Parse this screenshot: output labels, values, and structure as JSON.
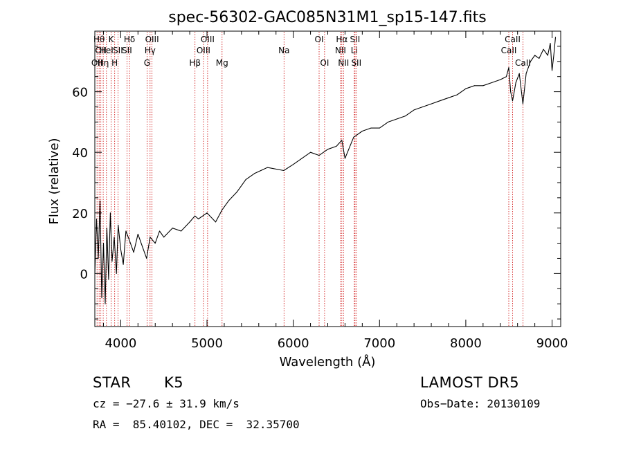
{
  "chart_data": {
    "type": "line",
    "title": "spec-56302-GAC085N31M1_sp15-147.fits",
    "xlabel": "Wavelength (Å)",
    "ylabel": "Flux (relative)",
    "xlim": [
      3700,
      9100
    ],
    "ylim": [
      -17.5,
      80
    ],
    "x_ticks": [
      4000,
      5000,
      6000,
      7000,
      8000,
      9000
    ],
    "y_ticks": [
      0,
      20,
      40,
      60
    ],
    "grid": false,
    "series": [
      {
        "x": [
          3700,
          3720,
          3740,
          3760,
          3780,
          3800,
          3820,
          3840,
          3860,
          3880,
          3900,
          3925,
          3950,
          3970,
          4000,
          4030,
          4060,
          4100,
          4150,
          4200,
          4250,
          4300,
          4340,
          4400,
          4450,
          4500,
          4600,
          4700,
          4800,
          4860,
          4900,
          5000,
          5100,
          5175,
          5250,
          5350,
          5450,
          5550,
          5700,
          5890,
          6000,
          6100,
          6200,
          6300,
          6400,
          6500,
          6563,
          6600,
          6700,
          6800,
          6900,
          7000,
          7100,
          7200,
          7300,
          7400,
          7500,
          7600,
          7700,
          7800,
          7900,
          8000,
          8100,
          8200,
          8300,
          8400,
          8470,
          8498,
          8520,
          8542,
          8580,
          8620,
          8662,
          8700,
          8750,
          8800,
          8850,
          8900,
          8950,
          8980,
          9000,
          9020,
          9040
        ],
        "y": [
          0,
          18,
          5,
          24,
          -8,
          10,
          -10,
          15,
          -2,
          20,
          4,
          12,
          0,
          16,
          8,
          3,
          14,
          11,
          7,
          13,
          9,
          5,
          12,
          10,
          14,
          12,
          15,
          14,
          17,
          19,
          18,
          20,
          17,
          21,
          24,
          27,
          31,
          33,
          35,
          34,
          36,
          38,
          40,
          39,
          41,
          42,
          44,
          38,
          45,
          47,
          48,
          48,
          50,
          51,
          52,
          54,
          55,
          56,
          57,
          58,
          59,
          61,
          62,
          62,
          63,
          64,
          65,
          68,
          60,
          57,
          63,
          66,
          56,
          66,
          70,
          72,
          71,
          74,
          72,
          76,
          67,
          72,
          78
        ]
      }
    ],
    "annotations": [
      {
        "wave": 3726,
        "row": 3,
        "label": "OII"
      },
      {
        "wave": 3750,
        "row": 1,
        "label": "Hθ"
      },
      {
        "wave": 3770,
        "row": 2,
        "label": "OII"
      },
      {
        "wave": 3797,
        "row": 3,
        "label": "Hη"
      },
      {
        "wave": 3835,
        "row": 2,
        "label": "HeI"
      },
      {
        "wave": 3889,
        "row": 1,
        "label": "K"
      },
      {
        "wave": 3930,
        "row": 3,
        "label": "H"
      },
      {
        "wave": 3968,
        "row": 2,
        "label": "SII"
      },
      {
        "wave": 4102,
        "row": 1,
        "label": "Hδ"
      },
      {
        "wave": 4072,
        "row": 2,
        "label": "SII"
      },
      {
        "wave": 4305,
        "row": 3,
        "label": "G"
      },
      {
        "wave": 4340,
        "row": 2,
        "label": "Hγ"
      },
      {
        "wave": 4363,
        "row": 1,
        "label": "OIII"
      },
      {
        "wave": 4861,
        "row": 3,
        "label": "Hβ"
      },
      {
        "wave": 4959,
        "row": 2,
        "label": "OIII"
      },
      {
        "wave": 5007,
        "row": 1,
        "label": "OIII"
      },
      {
        "wave": 5175,
        "row": 3,
        "label": "Mg"
      },
      {
        "wave": 5893,
        "row": 2,
        "label": "Na"
      },
      {
        "wave": 6300,
        "row": 1,
        "label": "OI"
      },
      {
        "wave": 6363,
        "row": 3,
        "label": "OI"
      },
      {
        "wave": 6548,
        "row": 2,
        "label": "NII"
      },
      {
        "wave": 6563,
        "row": 1,
        "label": "Hα"
      },
      {
        "wave": 6583,
        "row": 3,
        "label": "NII"
      },
      {
        "wave": 6707,
        "row": 2,
        "label": "Li"
      },
      {
        "wave": 6716,
        "row": 1,
        "label": "SII"
      },
      {
        "wave": 6731,
        "row": 3,
        "label": "SII"
      },
      {
        "wave": 8498,
        "row": 2,
        "label": "CaII"
      },
      {
        "wave": 8542,
        "row": 1,
        "label": "CaII"
      },
      {
        "wave": 8662,
        "row": 3,
        "label": "CaII"
      }
    ]
  },
  "info": {
    "object": "STAR",
    "subclass": "K5",
    "survey": "LAMOST DR5",
    "cz": "cz = −27.6 ± 31.9 km/s",
    "obs_date": "Obs−Date: 20130109",
    "coords": "RA =  85.40102, DEC =  32.35700"
  },
  "colors": {
    "line": "#000000",
    "marker": "#cc0000",
    "background": "#ffffff"
  }
}
